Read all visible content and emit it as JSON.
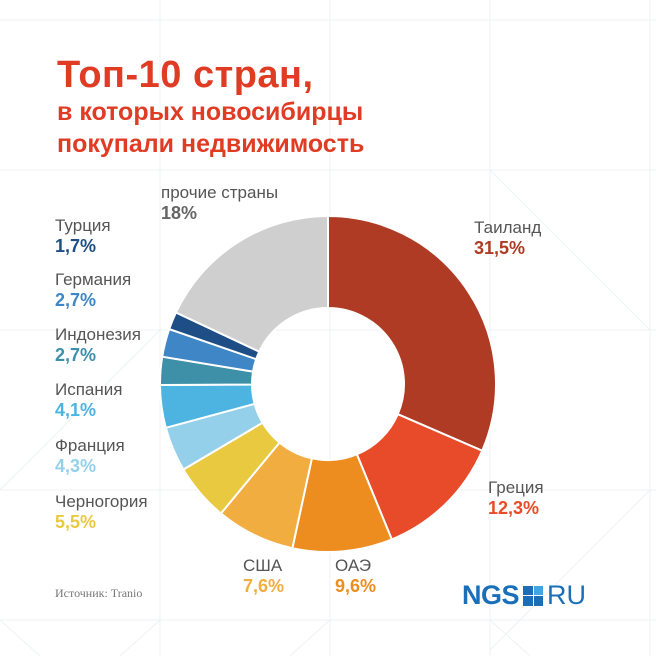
{
  "title": {
    "line1": "Топ-10 стран,",
    "line2": "в которых новосибирцы",
    "line3": "покупали недвижимость"
  },
  "source": "Источник:  Tranio",
  "logo": {
    "left": "NGS",
    "right": "RU",
    "color": "#1b6fb8"
  },
  "chart_data": {
    "type": "pie",
    "donut": true,
    "direction": "clockwise from top",
    "slices": [
      {
        "name": "Таиланд",
        "value": 31.5,
        "label": "31,5%",
        "color": "#b03b24"
      },
      {
        "name": "Греция",
        "value": 12.3,
        "label": "12,3%",
        "color": "#e84b29"
      },
      {
        "name": "ОАЭ",
        "value": 9.6,
        "label": "9,6%",
        "color": "#ee8d1f"
      },
      {
        "name": "США",
        "value": 7.6,
        "label": "7,6%",
        "color": "#f2ad40"
      },
      {
        "name": "Черногория",
        "value": 5.5,
        "label": "5,5%",
        "color": "#e8c940"
      },
      {
        "name": "Франция",
        "value": 4.3,
        "label": "4,3%",
        "color": "#95d0ea"
      },
      {
        "name": "Испания",
        "value": 4.1,
        "label": "4,1%",
        "color": "#4db3e1"
      },
      {
        "name": "Индонезия",
        "value": 2.7,
        "label": "2,7%",
        "color": "#3e90a8"
      },
      {
        "name": "Германия",
        "value": 2.7,
        "label": "2,7%",
        "color": "#3f86c6"
      },
      {
        "name": "Турция",
        "value": 1.7,
        "label": "1,7%",
        "color": "#1d4e86"
      },
      {
        "name": "прочие страны",
        "value": 18,
        "label": "18%",
        "color": "#cfcfcf",
        "label_color": "#666666"
      }
    ]
  }
}
